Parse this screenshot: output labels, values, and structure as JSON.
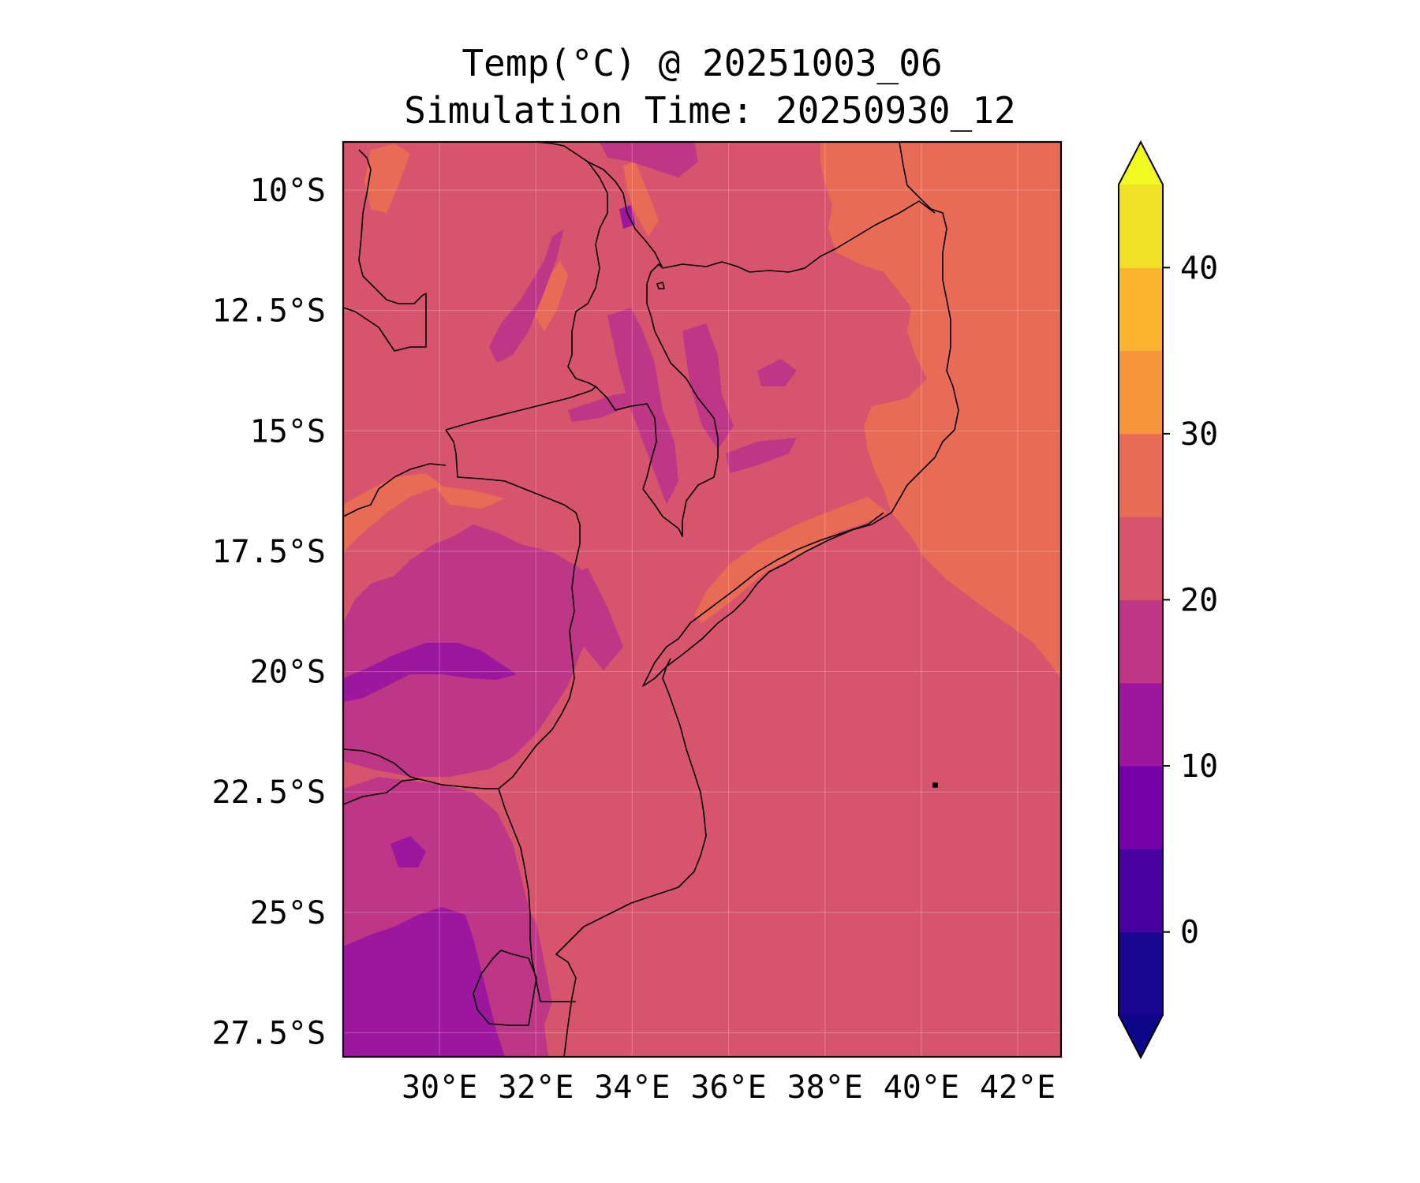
{
  "figure": {
    "title_line1": "Temp(°C) @ 20251003_06",
    "title_line2": "Simulation Time: 20250930_12"
  },
  "map": {
    "lon_range": [
      28.0,
      42.9
    ],
    "lat_range": [
      -28.0,
      -9.0
    ],
    "x_ticks": [
      {
        "lon": 30,
        "label": "30°E"
      },
      {
        "lon": 32,
        "label": "32°E"
      },
      {
        "lon": 34,
        "label": "34°E"
      },
      {
        "lon": 36,
        "label": "36°E"
      },
      {
        "lon": 38,
        "label": "38°E"
      },
      {
        "lon": 40,
        "label": "40°E"
      },
      {
        "lon": 42,
        "label": "42°E"
      }
    ],
    "y_ticks": [
      {
        "lat": -10.0,
        "label": "10°S"
      },
      {
        "lat": -12.5,
        "label": "12.5°S"
      },
      {
        "lat": -15.0,
        "label": "15°S"
      },
      {
        "lat": -17.5,
        "label": "17.5°S"
      },
      {
        "lat": -20.0,
        "label": "20°S"
      },
      {
        "lat": -22.5,
        "label": "22.5°S"
      },
      {
        "lat": -25.0,
        "label": "25°S"
      },
      {
        "lat": -27.5,
        "label": "27.5°S"
      }
    ],
    "gridlines": true,
    "boundaries": "coastlines and country borders"
  },
  "colorbar": {
    "levels": [
      -5,
      0,
      5,
      10,
      15,
      20,
      25,
      30,
      35,
      40,
      45
    ],
    "colors": [
      "#1b078f",
      "#4801a0",
      "#7500a8",
      "#9c179e",
      "#bd3786",
      "#d6556d",
      "#e86b55",
      "#f7953c",
      "#fbb42f",
      "#f1e126"
    ],
    "under_color": "#0d0887",
    "over_color": "#f0f921",
    "extend": "both",
    "tick_values": [
      0,
      10,
      20,
      30,
      40
    ],
    "tick_labels": [
      "0",
      "10",
      "20",
      "30",
      "40"
    ]
  },
  "colors": {
    "temp_15_20": "#bd3786",
    "temp_10_15": "#9c179e",
    "temp_20_25": "#d6556d",
    "temp_25_30": "#e86b55",
    "boundary_line": "#000000"
  }
}
